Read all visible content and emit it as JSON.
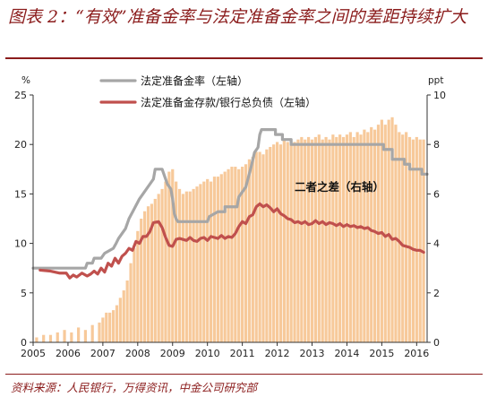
{
  "header": {
    "title": "图表 2：“有效”准备金率与法定准备金率之间的差距持续扩大"
  },
  "footer": {
    "source": "资料来源：人民银行，万得资讯，中金公司研究部"
  },
  "colors": {
    "title": "#8b1c1c",
    "statutory_line": "#a6a6a6",
    "effective_line": "#c0504d",
    "spread_bars": "#f7c99a"
  },
  "chart_data": {
    "type": "line",
    "left_unit": "%",
    "right_unit": "ppt",
    "ylim_left": [
      0,
      25
    ],
    "ylim_right": [
      0,
      10
    ],
    "yticks_left": [
      "0",
      "5",
      "10",
      "15",
      "20",
      "25"
    ],
    "yticks_right": [
      "0",
      "2",
      "4",
      "6",
      "8",
      "10"
    ],
    "xlim": [
      2005,
      2016.3
    ],
    "xticks": [
      "2005",
      "2006",
      "2007",
      "2008",
      "2009",
      "2010",
      "2011",
      "2012",
      "2013",
      "2014",
      "2015",
      "2016"
    ],
    "annotation": "二者之差（右轴）",
    "series": [
      {
        "name": "法定准备金率（左轴）",
        "axis": "left",
        "style": "line",
        "points": [
          [
            2005.0,
            7.5
          ],
          [
            2006.5,
            7.5
          ],
          [
            2006.55,
            8.0
          ],
          [
            2006.7,
            8.0
          ],
          [
            2006.75,
            8.5
          ],
          [
            2006.95,
            8.5
          ],
          [
            2007.05,
            9.0
          ],
          [
            2007.3,
            9.5
          ],
          [
            2007.38,
            10.0
          ],
          [
            2007.45,
            10.5
          ],
          [
            2007.55,
            11.0
          ],
          [
            2007.65,
            11.5
          ],
          [
            2007.75,
            12.5
          ],
          [
            2007.9,
            13.5
          ],
          [
            2008.05,
            14.5
          ],
          [
            2008.15,
            15.0
          ],
          [
            2008.25,
            15.5
          ],
          [
            2008.35,
            16.0
          ],
          [
            2008.45,
            16.5
          ],
          [
            2008.5,
            17.5
          ],
          [
            2008.7,
            17.5
          ],
          [
            2008.75,
            17.0
          ],
          [
            2008.85,
            16.0
          ],
          [
            2008.95,
            15.5
          ],
          [
            2009.0,
            14.5
          ],
          [
            2009.05,
            13.0
          ],
          [
            2009.1,
            12.5
          ],
          [
            2009.15,
            12.2
          ],
          [
            2010.0,
            12.2
          ],
          [
            2010.05,
            12.7
          ],
          [
            2010.3,
            13.2
          ],
          [
            2010.5,
            13.2
          ],
          [
            2010.5,
            13.7
          ],
          [
            2010.85,
            13.7
          ],
          [
            2010.9,
            14.7
          ],
          [
            2011.0,
            15.2
          ],
          [
            2011.1,
            15.7
          ],
          [
            2011.25,
            17.7
          ],
          [
            2011.35,
            19.2
          ],
          [
            2011.45,
            19.7
          ],
          [
            2011.5,
            21.0
          ],
          [
            2011.55,
            21.5
          ],
          [
            2011.95,
            21.5
          ],
          [
            2011.95,
            21.0
          ],
          [
            2012.15,
            21.0
          ],
          [
            2012.15,
            20.5
          ],
          [
            2012.4,
            20.5
          ],
          [
            2012.4,
            20.0
          ],
          [
            2015.05,
            20.0
          ],
          [
            2015.05,
            19.5
          ],
          [
            2015.3,
            19.5
          ],
          [
            2015.3,
            18.5
          ],
          [
            2015.65,
            18.5
          ],
          [
            2015.65,
            18.0
          ],
          [
            2015.8,
            18.0
          ],
          [
            2015.8,
            17.5
          ],
          [
            2016.15,
            17.5
          ],
          [
            2016.15,
            17.0
          ],
          [
            2016.3,
            17.0
          ]
        ]
      },
      {
        "name": "法定准备金存款/银行总负债（左轴）",
        "axis": "left",
        "style": "line",
        "points": [
          [
            2005.2,
            7.3
          ],
          [
            2005.5,
            7.2
          ],
          [
            2005.75,
            7.0
          ],
          [
            2005.95,
            7.0
          ],
          [
            2006.05,
            6.5
          ],
          [
            2006.15,
            6.8
          ],
          [
            2006.25,
            6.6
          ],
          [
            2006.4,
            7.0
          ],
          [
            2006.55,
            6.7
          ],
          [
            2006.65,
            6.9
          ],
          [
            2006.75,
            7.2
          ],
          [
            2006.85,
            6.9
          ],
          [
            2006.95,
            7.5
          ],
          [
            2007.05,
            7.1
          ],
          [
            2007.15,
            8.0
          ],
          [
            2007.25,
            7.7
          ],
          [
            2007.35,
            8.5
          ],
          [
            2007.45,
            8.0
          ],
          [
            2007.55,
            8.7
          ],
          [
            2007.65,
            9.0
          ],
          [
            2007.75,
            9.5
          ],
          [
            2007.85,
            9.3
          ],
          [
            2007.95,
            10.2
          ],
          [
            2008.05,
            10.0
          ],
          [
            2008.15,
            10.7
          ],
          [
            2008.25,
            10.7
          ],
          [
            2008.35,
            11.2
          ],
          [
            2008.45,
            12.1
          ],
          [
            2008.6,
            12.2
          ],
          [
            2008.7,
            11.6
          ],
          [
            2008.8,
            10.6
          ],
          [
            2008.9,
            9.8
          ],
          [
            2009.0,
            9.7
          ],
          [
            2009.1,
            10.4
          ],
          [
            2009.2,
            10.5
          ],
          [
            2009.3,
            10.4
          ],
          [
            2009.4,
            10.3
          ],
          [
            2009.5,
            10.6
          ],
          [
            2009.6,
            10.3
          ],
          [
            2009.7,
            10.2
          ],
          [
            2009.8,
            10.5
          ],
          [
            2009.9,
            10.6
          ],
          [
            2010.0,
            10.3
          ],
          [
            2010.1,
            10.7
          ],
          [
            2010.2,
            10.6
          ],
          [
            2010.3,
            10.5
          ],
          [
            2010.4,
            10.8
          ],
          [
            2010.5,
            10.5
          ],
          [
            2010.6,
            10.7
          ],
          [
            2010.7,
            10.6
          ],
          [
            2010.8,
            11.0
          ],
          [
            2010.9,
            11.7
          ],
          [
            2011.0,
            12.2
          ],
          [
            2011.1,
            12.0
          ],
          [
            2011.2,
            12.7
          ],
          [
            2011.3,
            12.9
          ],
          [
            2011.4,
            13.7
          ],
          [
            2011.5,
            14.0
          ],
          [
            2011.6,
            13.7
          ],
          [
            2011.7,
            13.9
          ],
          [
            2011.8,
            13.6
          ],
          [
            2011.9,
            13.2
          ],
          [
            2012.0,
            13.5
          ],
          [
            2012.1,
            13.0
          ],
          [
            2012.2,
            12.8
          ],
          [
            2012.3,
            12.5
          ],
          [
            2012.4,
            12.4
          ],
          [
            2012.5,
            12.1
          ],
          [
            2012.6,
            12.2
          ],
          [
            2012.7,
            12.0
          ],
          [
            2012.8,
            12.2
          ],
          [
            2012.9,
            11.9
          ],
          [
            2013.0,
            12.0
          ],
          [
            2013.1,
            12.3
          ],
          [
            2013.2,
            12.0
          ],
          [
            2013.3,
            12.2
          ],
          [
            2013.4,
            11.9
          ],
          [
            2013.5,
            12.1
          ],
          [
            2013.6,
            12.0
          ],
          [
            2013.7,
            11.8
          ],
          [
            2013.8,
            12.0
          ],
          [
            2013.9,
            11.7
          ],
          [
            2014.0,
            11.9
          ],
          [
            2014.1,
            11.7
          ],
          [
            2014.2,
            11.8
          ],
          [
            2014.3,
            11.6
          ],
          [
            2014.4,
            11.7
          ],
          [
            2014.5,
            11.5
          ],
          [
            2014.6,
            11.6
          ],
          [
            2014.7,
            11.3
          ],
          [
            2014.8,
            11.2
          ],
          [
            2014.9,
            11.0
          ],
          [
            2015.0,
            11.1
          ],
          [
            2015.1,
            10.7
          ],
          [
            2015.2,
            10.9
          ],
          [
            2015.3,
            10.4
          ],
          [
            2015.4,
            10.5
          ],
          [
            2015.5,
            10.2
          ],
          [
            2015.6,
            9.8
          ],
          [
            2015.7,
            9.7
          ],
          [
            2015.8,
            9.6
          ],
          [
            2015.9,
            9.4
          ],
          [
            2016.0,
            9.3
          ],
          [
            2016.1,
            9.3
          ],
          [
            2016.2,
            9.1
          ]
        ]
      },
      {
        "name": "二者之差（右轴）",
        "axis": "right",
        "style": "bar",
        "points": [
          [
            2005.1,
            0.2
          ],
          [
            2005.3,
            0.3
          ],
          [
            2005.5,
            0.3
          ],
          [
            2005.7,
            0.4
          ],
          [
            2005.9,
            0.5
          ],
          [
            2006.1,
            0.4
          ],
          [
            2006.3,
            0.6
          ],
          [
            2006.5,
            0.5
          ],
          [
            2006.7,
            0.7
          ],
          [
            2006.9,
            0.8
          ],
          [
            2007.0,
            1.0
          ],
          [
            2007.1,
            1.2
          ],
          [
            2007.2,
            1.2
          ],
          [
            2007.3,
            1.3
          ],
          [
            2007.4,
            1.5
          ],
          [
            2007.5,
            1.8
          ],
          [
            2007.6,
            2.1
          ],
          [
            2007.7,
            2.5
          ],
          [
            2007.8,
            3.2
          ],
          [
            2007.9,
            3.8
          ],
          [
            2008.0,
            4.5
          ],
          [
            2008.1,
            5.0
          ],
          [
            2008.2,
            5.3
          ],
          [
            2008.3,
            5.5
          ],
          [
            2008.4,
            5.6
          ],
          [
            2008.5,
            5.8
          ],
          [
            2008.6,
            6.0
          ],
          [
            2008.7,
            6.2
          ],
          [
            2008.8,
            6.5
          ],
          [
            2008.9,
            6.9
          ],
          [
            2009.0,
            7.0
          ],
          [
            2009.1,
            6.5
          ],
          [
            2009.2,
            6.2
          ],
          [
            2009.3,
            6.0
          ],
          [
            2009.4,
            6.1
          ],
          [
            2009.5,
            6.1
          ],
          [
            2009.6,
            6.2
          ],
          [
            2009.7,
            6.3
          ],
          [
            2009.8,
            6.4
          ],
          [
            2009.9,
            6.5
          ],
          [
            2010.0,
            6.6
          ],
          [
            2010.1,
            6.5
          ],
          [
            2010.2,
            6.7
          ],
          [
            2010.3,
            6.7
          ],
          [
            2010.4,
            6.8
          ],
          [
            2010.5,
            6.9
          ],
          [
            2010.6,
            7.0
          ],
          [
            2010.7,
            7.1
          ],
          [
            2010.8,
            7.1
          ],
          [
            2010.9,
            7.0
          ],
          [
            2011.0,
            7.1
          ],
          [
            2011.1,
            7.2
          ],
          [
            2011.2,
            7.4
          ],
          [
            2011.3,
            7.5
          ],
          [
            2011.4,
            7.7
          ],
          [
            2011.5,
            7.7
          ],
          [
            2011.6,
            7.6
          ],
          [
            2011.7,
            7.8
          ],
          [
            2011.8,
            7.9
          ],
          [
            2011.9,
            8.0
          ],
          [
            2012.0,
            8.1
          ],
          [
            2012.1,
            8.0
          ],
          [
            2012.2,
            8.2
          ],
          [
            2012.3,
            8.1
          ],
          [
            2012.4,
            8.0
          ],
          [
            2012.5,
            8.1
          ],
          [
            2012.6,
            8.2
          ],
          [
            2012.7,
            8.3
          ],
          [
            2012.8,
            8.2
          ],
          [
            2012.9,
            8.3
          ],
          [
            2013.0,
            8.2
          ],
          [
            2013.1,
            8.3
          ],
          [
            2013.2,
            8.4
          ],
          [
            2013.3,
            8.2
          ],
          [
            2013.4,
            8.3
          ],
          [
            2013.5,
            8.2
          ],
          [
            2013.6,
            8.4
          ],
          [
            2013.7,
            8.3
          ],
          [
            2013.8,
            8.4
          ],
          [
            2013.9,
            8.3
          ],
          [
            2014.0,
            8.4
          ],
          [
            2014.1,
            8.5
          ],
          [
            2014.2,
            8.3
          ],
          [
            2014.3,
            8.5
          ],
          [
            2014.4,
            8.4
          ],
          [
            2014.5,
            8.6
          ],
          [
            2014.6,
            8.5
          ],
          [
            2014.7,
            8.7
          ],
          [
            2014.8,
            8.6
          ],
          [
            2014.9,
            8.8
          ],
          [
            2015.0,
            9.0
          ],
          [
            2015.1,
            8.8
          ],
          [
            2015.2,
            9.0
          ],
          [
            2015.3,
            9.1
          ],
          [
            2015.4,
            8.8
          ],
          [
            2015.5,
            8.5
          ],
          [
            2015.6,
            8.4
          ],
          [
            2015.7,
            8.5
          ],
          [
            2015.8,
            8.3
          ],
          [
            2015.9,
            8.2
          ],
          [
            2016.0,
            8.3
          ],
          [
            2016.1,
            8.2
          ],
          [
            2016.2,
            8.2
          ]
        ]
      }
    ]
  }
}
